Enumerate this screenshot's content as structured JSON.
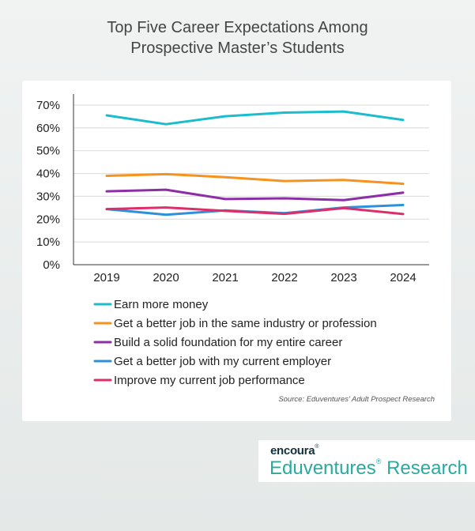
{
  "title_lines": [
    "Top Five Career Expectations Among",
    "Prospective Master’s Students"
  ],
  "source": "Source: Eduventures’ Adult Prospect Research",
  "brand": {
    "top": "encoura",
    "bottom": "Eduventures",
    "bottom_suffix": "Research"
  },
  "chart_data": {
    "type": "line",
    "title": "Top Five Career Expectations Among Prospective Master’s Students",
    "categories": [
      "2019",
      "2020",
      "2021",
      "2022",
      "2023",
      "2024"
    ],
    "ylim": [
      0,
      70
    ],
    "yticks": [
      "0%",
      "10%",
      "20%",
      "30%",
      "40%",
      "50%",
      "60%",
      "70%"
    ],
    "grid": true,
    "legend_position": "bottom",
    "series": [
      {
        "name": "Earn more money",
        "color": "#1bbccb",
        "values": [
          65.5,
          61.6,
          65.1,
          66.7,
          67.2,
          63.5
        ]
      },
      {
        "name": "Get a better job in the same industry or profession",
        "color": "#f6921e",
        "values": [
          39.0,
          39.7,
          38.4,
          36.7,
          37.2,
          35.5
        ]
      },
      {
        "name": "Build a solid foundation for my entire career",
        "color": "#8e2ea6",
        "values": [
          32.2,
          32.9,
          28.8,
          29.1,
          28.3,
          31.6
        ]
      },
      {
        "name": "Get a better job with my current employer",
        "color": "#2e90d8",
        "values": [
          24.4,
          21.9,
          23.8,
          22.6,
          25.1,
          26.2
        ]
      },
      {
        "name": "Improve my current job performance",
        "color": "#dc2e6b",
        "values": [
          24.4,
          25.1,
          23.6,
          22.3,
          24.8,
          22.2
        ]
      }
    ]
  }
}
